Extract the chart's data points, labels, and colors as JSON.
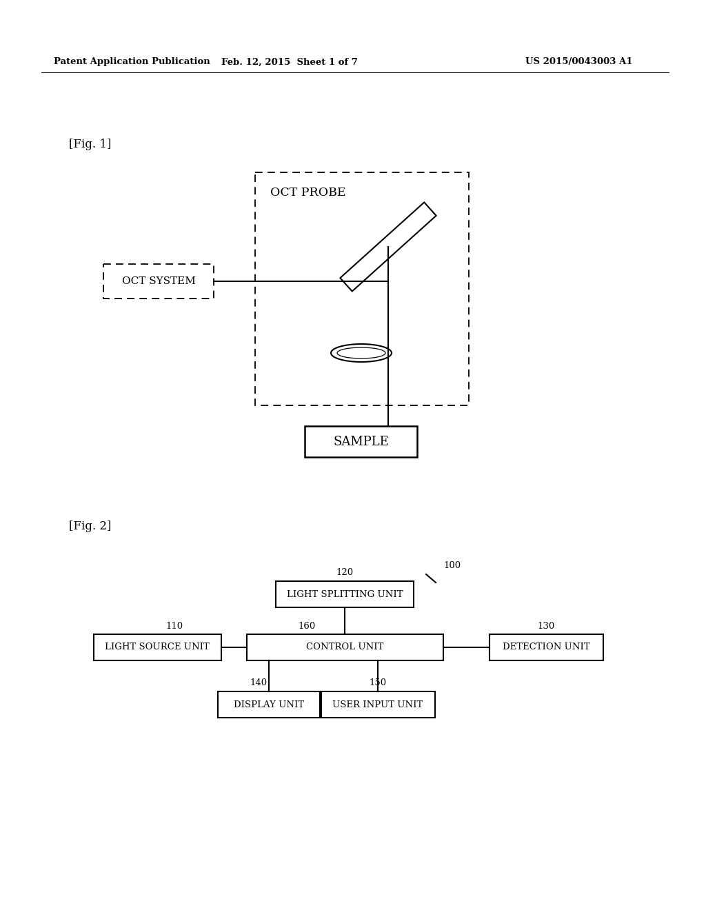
{
  "bg_color": "#ffffff",
  "header_left": "Patent Application Publication",
  "header_mid": "Feb. 12, 2015  Sheet 1 of 7",
  "header_right": "US 2015/0043003 A1",
  "fig1_label": "[Fig. 1]",
  "fig2_label": "[Fig. 2]",
  "oct_probe_label": "OCT PROBE",
  "oct_system_label": "OCT SYSTEM",
  "sample_label": "SAMPLE",
  "blocks_fig2": {
    "light_splitting": {
      "label": "LIGHT SPLITTING UNIT",
      "num": "120"
    },
    "control": {
      "label": "CONTROL UNIT",
      "num": "160"
    },
    "light_source": {
      "label": "LIGHT SOURCE UNIT",
      "num": "110"
    },
    "detection": {
      "label": "DETECTION UNIT",
      "num": "130"
    },
    "display": {
      "label": "DISPLAY UNIT",
      "num": "140"
    },
    "user_input": {
      "label": "USER INPUT UNIT",
      "num": "150"
    },
    "system_num": "100"
  }
}
